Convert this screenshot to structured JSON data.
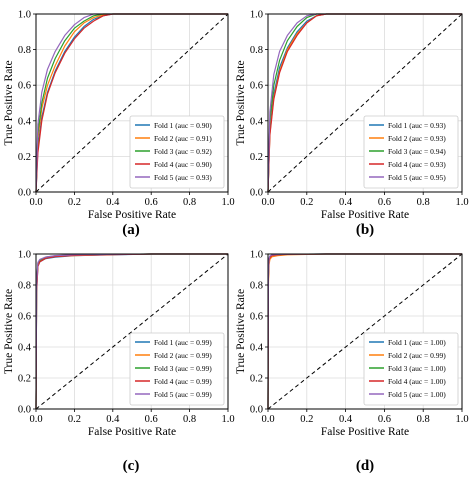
{
  "axes": {
    "xlabel": "False Positive Rate",
    "ylabel": "True Positive Rate",
    "xticks": [
      "0.0",
      "0.2",
      "0.4",
      "0.6",
      "0.8",
      "1.0"
    ],
    "yticks": [
      "0.0",
      "0.2",
      "0.4",
      "0.6",
      "0.8",
      "1.0"
    ]
  },
  "colors": [
    "#1f77b4",
    "#ff7f0e",
    "#2ca02c",
    "#d62728",
    "#9467bd"
  ],
  "chart_data": [
    {
      "type": "line",
      "panel_label": "(a)",
      "xlabel": "False Positive Rate",
      "ylabel": "True Positive Rate",
      "xlim": [
        0,
        1
      ],
      "ylim": [
        0,
        1
      ],
      "grid": true,
      "legend_position": "bottom-right",
      "reference_line": {
        "x": [
          0,
          1
        ],
        "y": [
          0,
          1
        ],
        "style": "dashed",
        "color": "#000000"
      },
      "series": [
        {
          "name": "Fold 1 (auc = 0.90)",
          "x": [
            0,
            0.01,
            0.03,
            0.06,
            0.1,
            0.15,
            0.2,
            0.25,
            0.3,
            0.35,
            0.4,
            0.45,
            1.0
          ],
          "y": [
            0,
            0.25,
            0.42,
            0.56,
            0.68,
            0.79,
            0.87,
            0.93,
            0.97,
            0.99,
            1.0,
            1.0,
            1.0
          ]
        },
        {
          "name": "Fold 2 (auc = 0.91)",
          "x": [
            0,
            0.01,
            0.03,
            0.06,
            0.1,
            0.15,
            0.2,
            0.25,
            0.3,
            0.35,
            0.4,
            1.0
          ],
          "y": [
            0,
            0.3,
            0.47,
            0.6,
            0.71,
            0.82,
            0.9,
            0.95,
            0.98,
            0.995,
            1.0,
            1.0
          ]
        },
        {
          "name": "Fold 3 (auc = 0.92)",
          "x": [
            0,
            0.01,
            0.03,
            0.06,
            0.1,
            0.15,
            0.2,
            0.25,
            0.3,
            0.35,
            1.0
          ],
          "y": [
            0,
            0.33,
            0.5,
            0.64,
            0.75,
            0.85,
            0.92,
            0.96,
            0.99,
            1.0,
            1.0
          ]
        },
        {
          "name": "Fold 4 (auc = 0.90)",
          "x": [
            0,
            0.01,
            0.03,
            0.06,
            0.1,
            0.15,
            0.2,
            0.25,
            0.3,
            0.35,
            0.4,
            0.45,
            1.0
          ],
          "y": [
            0,
            0.22,
            0.4,
            0.55,
            0.67,
            0.78,
            0.86,
            0.92,
            0.96,
            0.99,
            1.0,
            1.0,
            1.0
          ]
        },
        {
          "name": "Fold 5 (auc = 0.93)",
          "x": [
            0,
            0.01,
            0.03,
            0.06,
            0.1,
            0.15,
            0.2,
            0.25,
            0.3,
            1.0
          ],
          "y": [
            0,
            0.38,
            0.56,
            0.69,
            0.79,
            0.88,
            0.94,
            0.98,
            1.0,
            1.0
          ]
        }
      ]
    },
    {
      "type": "line",
      "panel_label": "(b)",
      "xlabel": "False Positive Rate",
      "ylabel": "True Positive Rate",
      "xlim": [
        0,
        1
      ],
      "ylim": [
        0,
        1
      ],
      "grid": true,
      "legend_position": "bottom-right",
      "reference_line": {
        "x": [
          0,
          1
        ],
        "y": [
          0,
          1
        ],
        "style": "dashed",
        "color": "#000000"
      },
      "series": [
        {
          "name": "Fold 1 (auc = 0.93)",
          "x": [
            0,
            0.01,
            0.03,
            0.06,
            0.1,
            0.15,
            0.2,
            0.25,
            0.3,
            1.0
          ],
          "y": [
            0,
            0.35,
            0.55,
            0.7,
            0.81,
            0.9,
            0.96,
            0.99,
            1.0,
            1.0
          ]
        },
        {
          "name": "Fold 2 (auc = 0.93)",
          "x": [
            0,
            0.01,
            0.03,
            0.06,
            0.1,
            0.15,
            0.2,
            0.25,
            0.3,
            1.0
          ],
          "y": [
            0,
            0.33,
            0.53,
            0.68,
            0.8,
            0.89,
            0.95,
            0.99,
            1.0,
            1.0
          ]
        },
        {
          "name": "Fold 3 (auc = 0.94)",
          "x": [
            0,
            0.01,
            0.03,
            0.06,
            0.1,
            0.15,
            0.2,
            0.25,
            1.0
          ],
          "y": [
            0,
            0.4,
            0.6,
            0.74,
            0.85,
            0.93,
            0.98,
            1.0,
            1.0
          ]
        },
        {
          "name": "Fold 4 (auc = 0.93)",
          "x": [
            0,
            0.01,
            0.03,
            0.06,
            0.1,
            0.15,
            0.2,
            0.25,
            0.3,
            1.0
          ],
          "y": [
            0,
            0.32,
            0.52,
            0.67,
            0.79,
            0.88,
            0.95,
            0.99,
            1.0,
            1.0
          ]
        },
        {
          "name": "Fold 5 (auc = 0.95)",
          "x": [
            0,
            0.01,
            0.03,
            0.06,
            0.1,
            0.15,
            0.2,
            0.25,
            1.0
          ],
          "y": [
            0,
            0.45,
            0.66,
            0.79,
            0.88,
            0.95,
            0.99,
            1.0,
            1.0
          ]
        }
      ]
    },
    {
      "type": "line",
      "panel_label": "(c)",
      "xlabel": "False Positive Rate",
      "ylabel": "True Positive Rate",
      "xlim": [
        0,
        1
      ],
      "ylim": [
        0,
        1
      ],
      "grid": true,
      "legend_position": "bottom-right",
      "reference_line": {
        "x": [
          0,
          1
        ],
        "y": [
          0,
          1
        ],
        "style": "dashed",
        "color": "#000000"
      },
      "series": [
        {
          "name": "Fold 1 (auc = 0.99)",
          "x": [
            0,
            0.003,
            0.01,
            0.02,
            0.05,
            0.1,
            0.2,
            0.4,
            0.6,
            1.0
          ],
          "y": [
            0,
            0.75,
            0.92,
            0.95,
            0.97,
            0.98,
            0.99,
            0.995,
            1.0,
            1.0
          ]
        },
        {
          "name": "Fold 2 (auc = 0.99)",
          "x": [
            0,
            0.003,
            0.01,
            0.02,
            0.05,
            0.1,
            0.2,
            0.4,
            0.6,
            1.0
          ],
          "y": [
            0,
            0.78,
            0.93,
            0.955,
            0.975,
            0.985,
            0.99,
            0.997,
            1.0,
            1.0
          ]
        },
        {
          "name": "Fold 3 (auc = 0.99)",
          "x": [
            0,
            0.003,
            0.01,
            0.02,
            0.05,
            0.1,
            0.2,
            0.4,
            0.6,
            1.0
          ],
          "y": [
            0,
            0.8,
            0.94,
            0.96,
            0.98,
            0.988,
            0.994,
            0.998,
            1.0,
            1.0
          ]
        },
        {
          "name": "Fold 4 (auc = 0.99)",
          "x": [
            0,
            0.003,
            0.01,
            0.02,
            0.05,
            0.1,
            0.2,
            0.4,
            0.6,
            1.0
          ],
          "y": [
            0,
            0.76,
            0.92,
            0.95,
            0.972,
            0.983,
            0.991,
            0.996,
            1.0,
            1.0
          ]
        },
        {
          "name": "Fold 5 (auc = 0.99)",
          "x": [
            0,
            0.003,
            0.01,
            0.02,
            0.05,
            0.1,
            0.2,
            0.4,
            0.6,
            1.0
          ],
          "y": [
            0,
            0.82,
            0.945,
            0.965,
            0.98,
            0.99,
            0.995,
            0.998,
            1.0,
            1.0
          ]
        }
      ]
    },
    {
      "type": "line",
      "panel_label": "(d)",
      "xlabel": "False Positive Rate",
      "ylabel": "True Positive Rate",
      "xlim": [
        0,
        1
      ],
      "ylim": [
        0,
        1
      ],
      "grid": true,
      "legend_position": "bottom-right",
      "reference_line": {
        "x": [
          0,
          1
        ],
        "y": [
          0,
          1
        ],
        "style": "dashed",
        "color": "#000000"
      },
      "series": [
        {
          "name": "Fold 1 (auc = 1.00)",
          "x": [
            0,
            0.002,
            0.005,
            0.01,
            0.02,
            0.05,
            0.1,
            0.3,
            1.0
          ],
          "y": [
            0,
            0.85,
            0.96,
            0.98,
            0.99,
            0.995,
            0.998,
            1.0,
            1.0
          ]
        },
        {
          "name": "Fold 2 (auc = 0.99)",
          "x": [
            0,
            0.002,
            0.005,
            0.01,
            0.02,
            0.05,
            0.1,
            0.3,
            1.0
          ],
          "y": [
            0,
            0.8,
            0.93,
            0.965,
            0.982,
            0.99,
            0.995,
            1.0,
            1.0
          ]
        },
        {
          "name": "Fold 3 (auc = 1.00)",
          "x": [
            0,
            0.002,
            0.005,
            0.01,
            0.02,
            0.05,
            0.1,
            0.3,
            1.0
          ],
          "y": [
            0,
            0.86,
            0.965,
            0.985,
            0.992,
            0.996,
            0.999,
            1.0,
            1.0
          ]
        },
        {
          "name": "Fold 4 (auc = 1.00)",
          "x": [
            0,
            0.002,
            0.005,
            0.01,
            0.02,
            0.05,
            0.1,
            0.3,
            1.0
          ],
          "y": [
            0,
            0.84,
            0.955,
            0.978,
            0.99,
            0.995,
            0.998,
            1.0,
            1.0
          ]
        },
        {
          "name": "Fold 5 (auc = 1.00)",
          "x": [
            0,
            0.002,
            0.005,
            0.01,
            0.02,
            0.05,
            0.1,
            0.3,
            1.0
          ],
          "y": [
            0,
            0.88,
            0.97,
            0.988,
            0.994,
            0.997,
            0.999,
            1.0,
            1.0
          ]
        }
      ]
    }
  ]
}
